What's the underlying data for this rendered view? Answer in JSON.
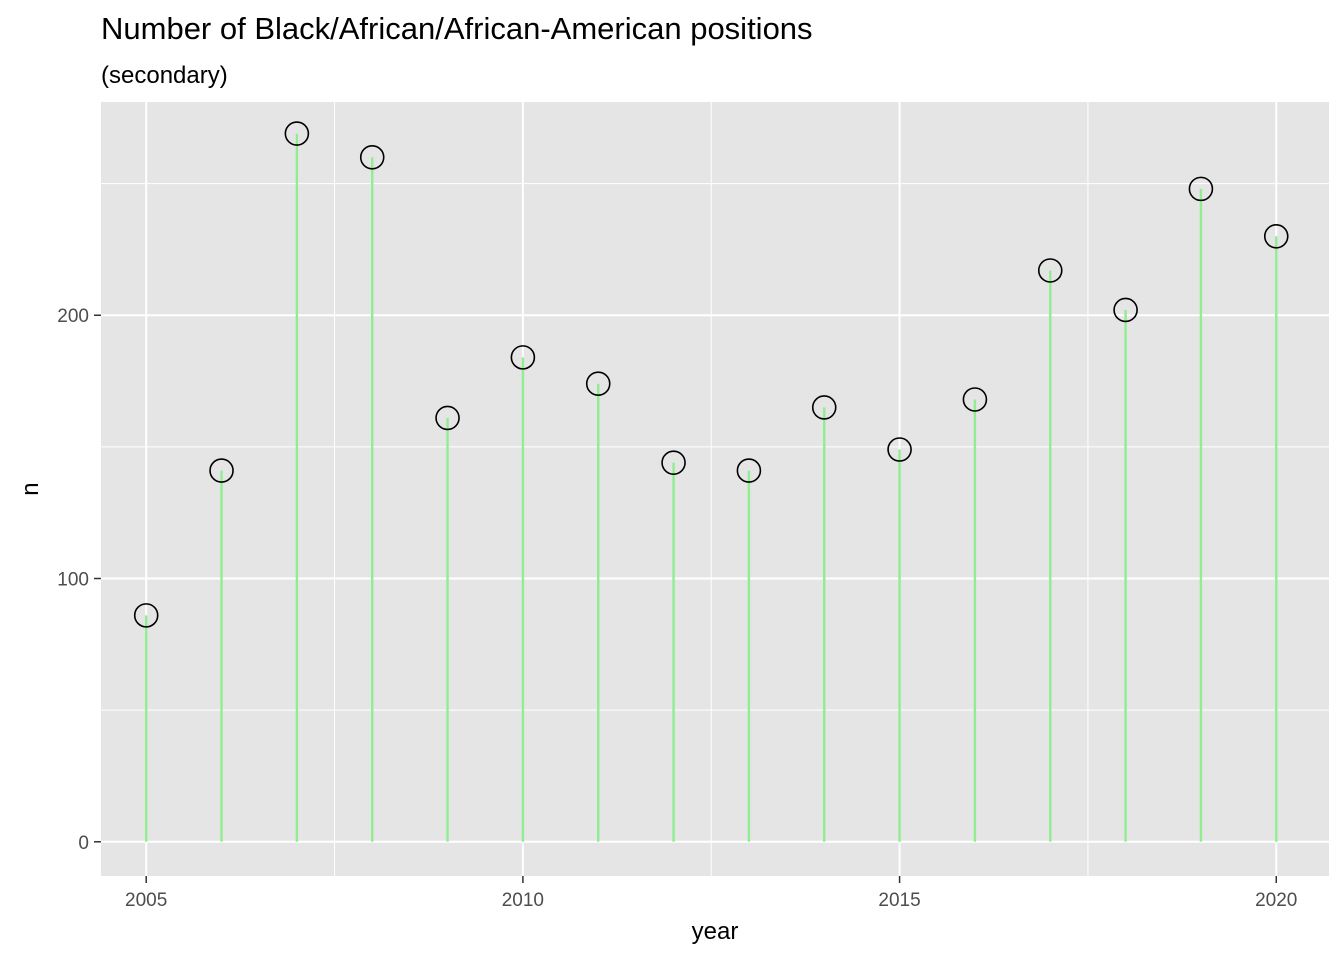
{
  "chart_data": {
    "type": "lollipop",
    "title": "Number  of Black/African/African-American  positions",
    "subtitle": "(secondary)",
    "xlabel": "year",
    "ylabel": "n",
    "x": [
      2005,
      2006,
      2007,
      2008,
      2009,
      2010,
      2011,
      2012,
      2013,
      2014,
      2015,
      2016,
      2017,
      2018,
      2019,
      2020
    ],
    "values": [
      86,
      141,
      269,
      260,
      161,
      184,
      174,
      144,
      141,
      165,
      149,
      168,
      217,
      202,
      248,
      230
    ],
    "xlim": [
      2004.4,
      2020.7
    ],
    "ylim": [
      -13,
      281
    ],
    "x_ticks": [
      2005,
      2010,
      2015,
      2020
    ],
    "x_tick_labels": [
      "2005",
      "2010",
      "2015",
      "2020"
    ],
    "y_ticks": [
      0,
      100,
      200
    ],
    "y_tick_labels": [
      "0",
      "100",
      "200"
    ],
    "grid": true,
    "legend": "none",
    "colors": {
      "panel": "#e5e5e5",
      "grid": "#ffffff",
      "stem": "#90ee90",
      "marker": "#000000"
    }
  }
}
